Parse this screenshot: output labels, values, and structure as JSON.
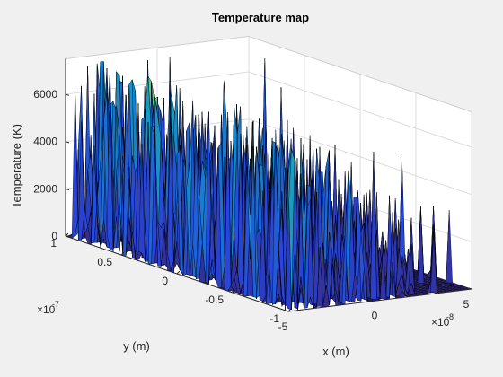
{
  "chart_data": {
    "type": "surface",
    "title": "Temperature map",
    "xlabel": "x (m)",
    "ylabel": "y (m)",
    "zlabel": "Temperature (K)",
    "x_exponent_label": "×10",
    "x_exponent_power": "-8",
    "y_exponent_label": "×10",
    "y_exponent_power": "-7",
    "xlim": [
      -5e-08,
      5e-08
    ],
    "ylim": [
      -1e-07,
      1e-07
    ],
    "zlim": [
      0,
      7500
    ],
    "x_ticks": [
      -5e-08,
      0,
      5e-08
    ],
    "x_tick_labels": [
      "-5",
      "0",
      "5"
    ],
    "y_ticks": [
      -1e-07,
      -5e-08,
      0,
      5e-08,
      1e-07
    ],
    "y_tick_labels": [
      "-1",
      "-0.5",
      "0",
      "0.5",
      "1"
    ],
    "z_ticks": [
      0,
      2000,
      4000,
      6000
    ],
    "z_tick_labels": [
      "0",
      "2000",
      "4000",
      "6000"
    ],
    "grid": true,
    "colormap": "parula",
    "edge_color": "#000000",
    "peak_temperature": 7500
  }
}
